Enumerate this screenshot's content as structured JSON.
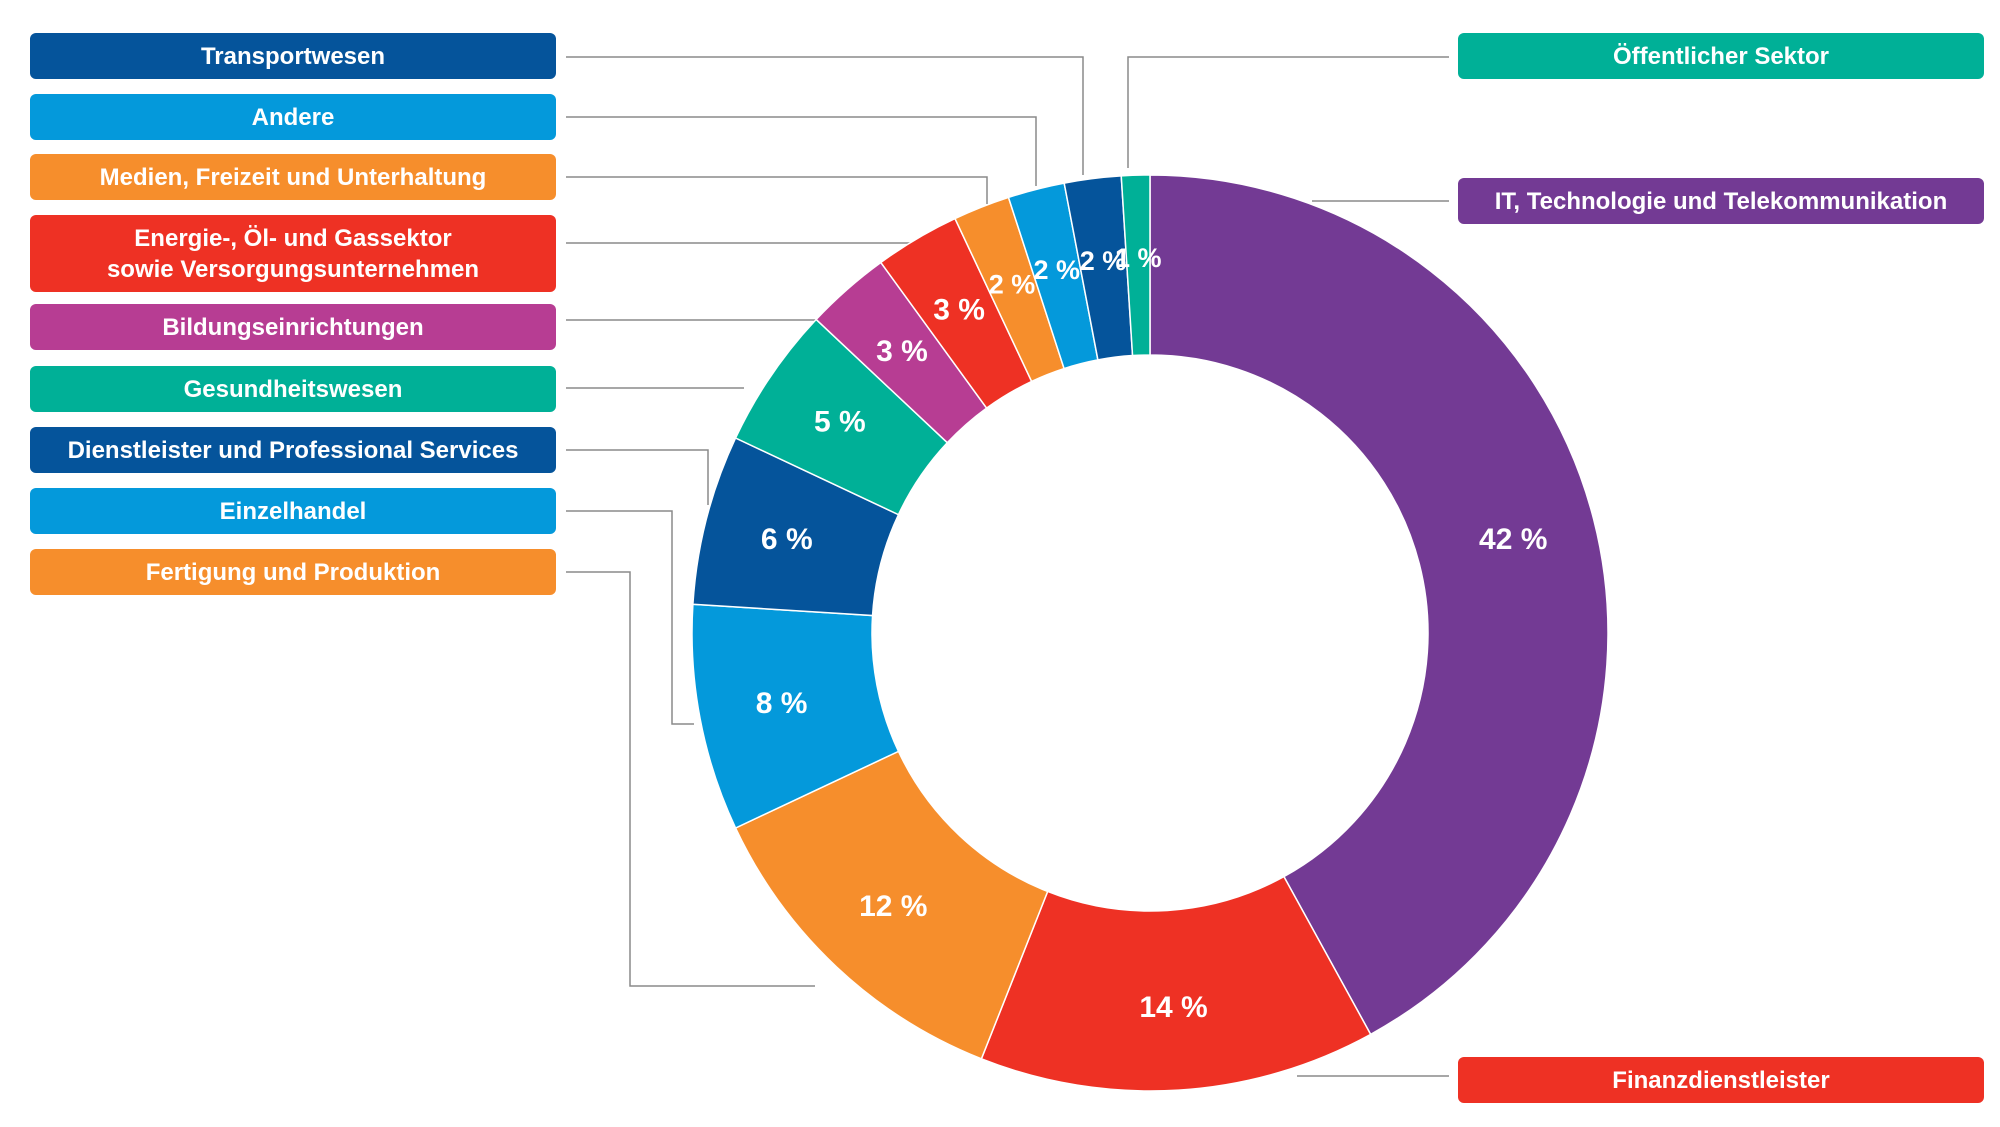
{
  "chart_data": {
    "type": "pie",
    "variant": "donut",
    "title": "",
    "unit_suffix": " %",
    "slices": [
      {
        "label": "IT, Technologie und Telekommunikation",
        "value": 42,
        "display": "42 %",
        "color": "#733a94"
      },
      {
        "label": "Finanzdienstleister",
        "value": 14,
        "display": "14 %",
        "color": "#ee3124"
      },
      {
        "label": "Fertigung und Produktion",
        "value": 12,
        "display": "12 %",
        "color": "#f68e2c"
      },
      {
        "label": "Einzelhandel",
        "value": 8,
        "display": "8 %",
        "color": "#0499db"
      },
      {
        "label": "Dienstleister und Professional Services",
        "value": 6,
        "display": "6 %",
        "color": "#05549b"
      },
      {
        "label": "Gesundheitswesen",
        "value": 5,
        "display": "5 %",
        "color": "#00b097"
      },
      {
        "label": "Bildungseinrichtungen",
        "value": 3,
        "display": "3 %",
        "color": "#b73d93"
      },
      {
        "label": "Energie-, Öl- und Gassektor\nsowie Versorgungsunternehmen",
        "value": 3,
        "display": "3 %",
        "color": "#ee3124"
      },
      {
        "label": "Medien, Freizeit und Unterhaltung",
        "value": 2,
        "display": "2 %",
        "color": "#f68e2c"
      },
      {
        "label": "Andere",
        "value": 2,
        "display": "2 %",
        "color": "#0499db"
      },
      {
        "label": "Transportwesen",
        "value": 2,
        "display": "2 %",
        "color": "#05549b"
      },
      {
        "label": "Öffentlicher Sektor",
        "value": 1,
        "display": "1 %",
        "color": "#00b097"
      }
    ],
    "legend": [
      {
        "text": "Transportwesen",
        "color": "#05549b"
      },
      {
        "text": "Andere",
        "color": "#0499db"
      },
      {
        "text": "Medien, Freizeit und Unterhaltung",
        "color": "#f68e2c"
      },
      {
        "text": "Energie-, Öl- und Gassektor\nsowie Versorgungsunternehmen",
        "color": "#ee3124"
      },
      {
        "text": "Bildungseinrichtungen",
        "color": "#b73d93"
      },
      {
        "text": "Gesundheitswesen",
        "color": "#00b097"
      },
      {
        "text": "Dienstleister und Professional Services",
        "color": "#05549b"
      },
      {
        "text": "Einzelhandel",
        "color": "#0499db"
      },
      {
        "text": "Fertigung und Produktion",
        "color": "#f68e2c"
      },
      {
        "text": "Öffentlicher Sektor",
        "color": "#00b097"
      },
      {
        "text": "IT, Technologie und Telekommunikation",
        "color": "#733a94"
      },
      {
        "text": "Finanzdienstleister",
        "color": "#ee3124"
      }
    ],
    "legend_placement": "left and right columns with leader lines"
  }
}
